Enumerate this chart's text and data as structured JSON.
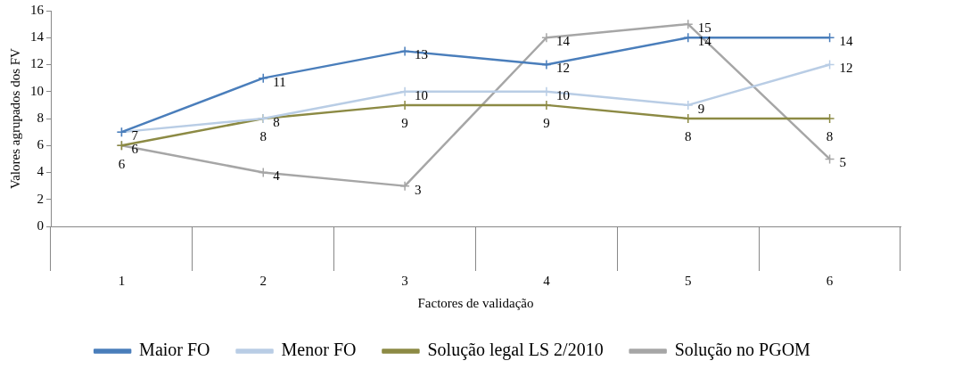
{
  "chart_data": {
    "type": "line",
    "xlabel": "Factores de validação",
    "ylabel": "Valores agrupados dos FV",
    "categories": [
      "1",
      "2",
      "3",
      "4",
      "5",
      "6"
    ],
    "series": [
      {
        "name": "Maior FO",
        "color": "#4a7ebb",
        "values": [
          7,
          11,
          13,
          12,
          14,
          14
        ],
        "value_labels": [
          "7",
          "11",
          "13",
          "12",
          "14",
          "14"
        ]
      },
      {
        "name": "Menor FO",
        "color": "#b9cde5",
        "values": [
          7,
          8,
          10,
          10,
          9,
          12
        ],
        "value_labels": [
          null,
          "8",
          "10",
          "10",
          "9",
          "12"
        ]
      },
      {
        "name": "Solução legal LS 2/2010",
        "color": "#8c8a44",
        "values": [
          6,
          8,
          9,
          9,
          8,
          8
        ],
        "value_labels": [
          "6",
          "8",
          "9",
          "9",
          "8",
          "8"
        ]
      },
      {
        "name": "Solução no PGOM",
        "color": "#a6a6a6",
        "values": [
          6,
          4,
          3,
          14,
          15,
          5
        ],
        "value_labels": [
          "6",
          "4",
          "3",
          "14",
          "15",
          "5"
        ]
      }
    ],
    "ylim": [
      0,
      16
    ],
    "yticks": [
      0,
      2,
      4,
      6,
      8,
      10,
      12,
      14,
      16
    ],
    "grid": false,
    "legend": "bottom",
    "marker": "cross",
    "line_style": "solid"
  }
}
